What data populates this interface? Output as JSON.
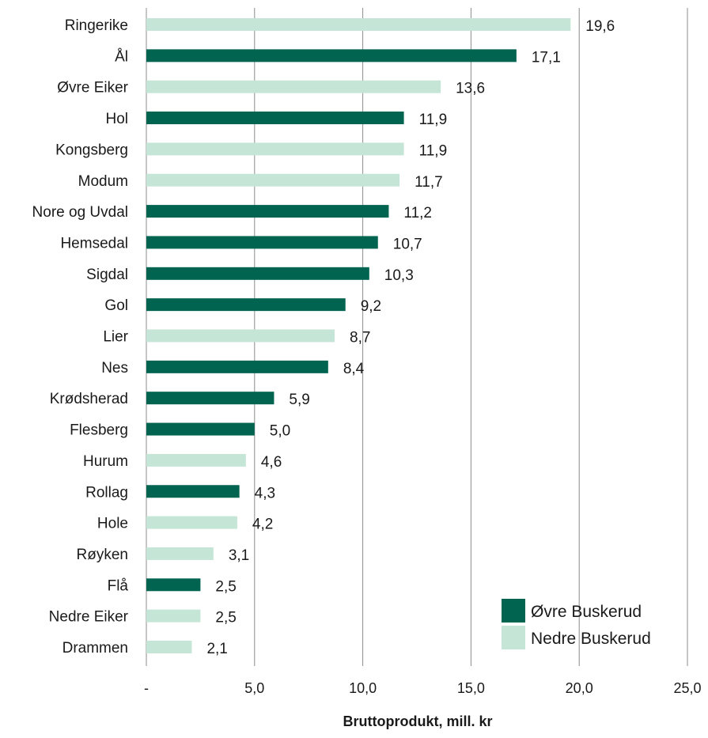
{
  "chart_data": {
    "type": "bar",
    "orientation": "horizontal",
    "categories": [
      "Ringerike",
      "Ål",
      "Øvre Eiker",
      "Hol",
      "Kongsberg",
      "Modum",
      "Nore og Uvdal",
      "Hemsedal",
      "Sigdal",
      "Gol",
      "Lier",
      "Nes",
      "Krødsherad",
      "Flesberg",
      "Hurum",
      "Rollag",
      "Hole",
      "Røyken",
      "Flå",
      "Nedre Eiker",
      "Drammen"
    ],
    "values": [
      19.6,
      17.1,
      13.6,
      11.9,
      11.9,
      11.7,
      11.2,
      10.7,
      10.3,
      9.2,
      8.7,
      8.4,
      5.9,
      5.0,
      4.6,
      4.3,
      4.2,
      3.1,
      2.5,
      2.5,
      2.1
    ],
    "value_labels": [
      "19,6",
      "17,1",
      "13,6",
      "11,9",
      "11,9",
      "11,7",
      "11,2",
      "10,7",
      "10,3",
      "9,2",
      "8,7",
      "8,4",
      "5,9",
      "5,0",
      "4,6",
      "4,3",
      "4,2",
      "3,1",
      "2,5",
      "2,5",
      "2,1"
    ],
    "groups": [
      "Nedre Buskerud",
      "Øvre Buskerud",
      "Nedre Buskerud",
      "Øvre Buskerud",
      "Nedre Buskerud",
      "Nedre Buskerud",
      "Øvre Buskerud",
      "Øvre Buskerud",
      "Øvre Buskerud",
      "Øvre Buskerud",
      "Nedre Buskerud",
      "Øvre Buskerud",
      "Øvre Buskerud",
      "Øvre Buskerud",
      "Nedre Buskerud",
      "Øvre Buskerud",
      "Nedre Buskerud",
      "Nedre Buskerud",
      "Øvre Buskerud",
      "Nedre Buskerud",
      "Nedre Buskerud"
    ],
    "legend": [
      {
        "name": "Øvre Buskerud",
        "color": "#006450"
      },
      {
        "name": "Nedre Buskerud",
        "color": "#c5e5d7"
      }
    ],
    "legend_position": "bottom-right",
    "xlabel": "Bruttoprodukt, mill. kr",
    "xlim": [
      0,
      25
    ],
    "xticks": [
      0,
      5,
      10,
      15,
      20,
      25
    ],
    "xtick_labels": [
      "-",
      "5,0",
      "10,0",
      "15,0",
      "20,0",
      "25,0"
    ],
    "grid": "vertical"
  }
}
